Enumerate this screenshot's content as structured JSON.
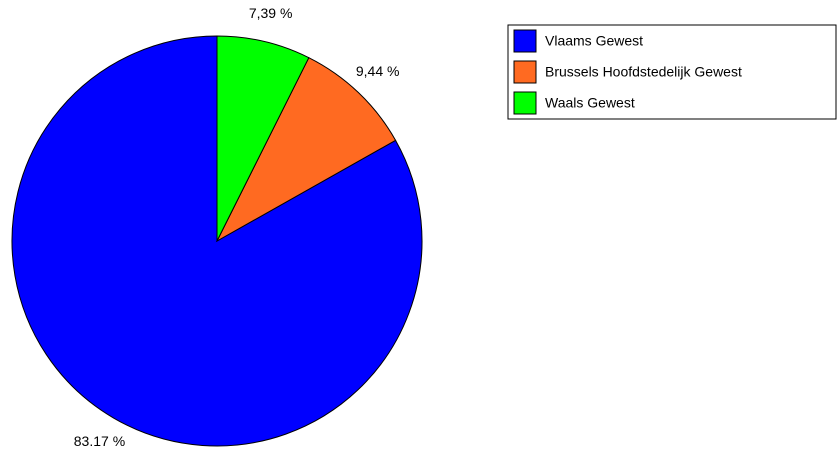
{
  "chart_data": {
    "type": "pie",
    "categories": [
      "Vlaams Gewest",
      "Brussels Hoofdstedelijk Gewest",
      "Waals Gewest"
    ],
    "values": [
      83.17,
      9.44,
      7.39
    ],
    "value_labels": [
      "83.17 %",
      "9,44 %",
      "7,39 %"
    ],
    "colors": [
      "#0000ff",
      "#ff6a21",
      "#00ff00"
    ]
  }
}
